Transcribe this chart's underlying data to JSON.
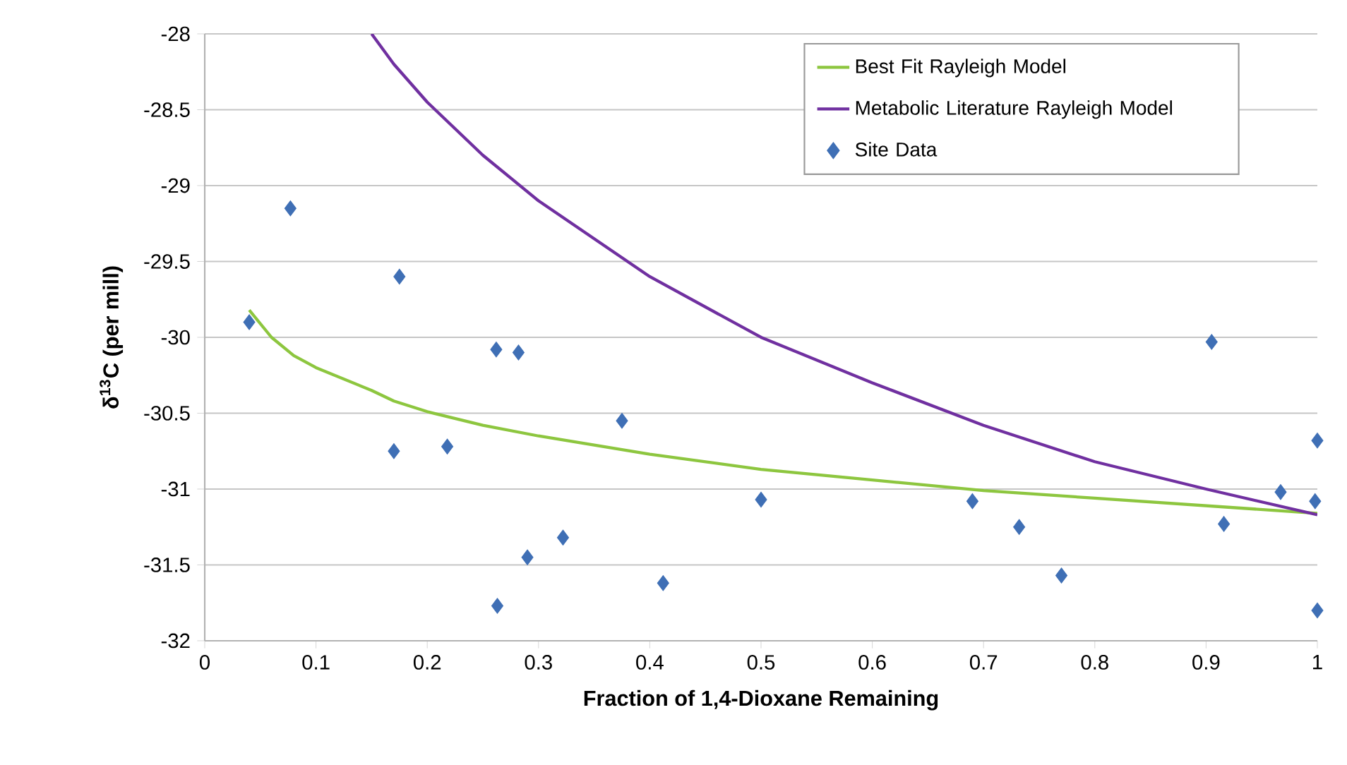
{
  "chart_data": {
    "type": "scatter",
    "xlabel": "Fraction of 1,4-Dioxane Remaining",
    "ylabel": "δ$^{13}$C (per mill)",
    "xlim": [
      0,
      1
    ],
    "ylim": [
      -32,
      -28
    ],
    "xticks": [
      0,
      0.1,
      0.2,
      0.3,
      0.4,
      0.5,
      0.6,
      0.7,
      0.8,
      0.9,
      1
    ],
    "yticks": [
      -32,
      -31.5,
      -31,
      -30.5,
      -30,
      -29.5,
      -29,
      -28.5,
      -28
    ],
    "grid": "y",
    "legend": "top right",
    "series": [
      {
        "name": "Best Fit Rayleigh Model",
        "type": "line",
        "color": "#8dc63f",
        "marker": "none",
        "line_style": "solid",
        "x": [
          0.04,
          0.06,
          0.08,
          0.1,
          0.15,
          0.17,
          0.2,
          0.25,
          0.3,
          0.4,
          0.5,
          0.6,
          0.7,
          0.8,
          0.9,
          1.0
        ],
        "values": [
          -29.82,
          -30.0,
          -30.12,
          -30.2,
          -30.35,
          -30.42,
          -30.49,
          -30.58,
          -30.65,
          -30.77,
          -30.87,
          -30.94,
          -31.01,
          -31.06,
          -31.11,
          -31.16
        ]
      },
      {
        "name": "Metabolic Literature Rayleigh Model",
        "type": "line",
        "color": "#7030a0",
        "marker": "none",
        "line_style": "solid",
        "x": [
          0.15,
          0.17,
          0.2,
          0.25,
          0.3,
          0.35,
          0.4,
          0.5,
          0.6,
          0.7,
          0.8,
          0.9,
          1.0
        ],
        "values": [
          -28.0,
          -28.2,
          -28.45,
          -28.8,
          -29.1,
          -29.35,
          -29.6,
          -30.0,
          -30.3,
          -30.58,
          -30.82,
          -31.0,
          -31.17
        ]
      },
      {
        "name": "Site Data",
        "color": "#3f6fb5",
        "marker": "diamond",
        "x": [
          0.04,
          0.077,
          0.175,
          0.17,
          0.218,
          0.262,
          0.282,
          0.375,
          0.263,
          0.29,
          0.322,
          0.412,
          0.5,
          0.69,
          0.732,
          0.77,
          0.905,
          0.916,
          0.967,
          1.0,
          0.998,
          1.0
        ],
        "values": [
          -29.9,
          -29.15,
          -29.6,
          -30.75,
          -30.72,
          -30.08,
          -30.1,
          -30.55,
          -31.77,
          -31.45,
          -31.32,
          -31.62,
          -31.07,
          -31.08,
          -31.25,
          -31.57,
          -30.03,
          -31.23,
          -31.02,
          -30.68,
          -31.08,
          -31.8
        ]
      }
    ]
  }
}
